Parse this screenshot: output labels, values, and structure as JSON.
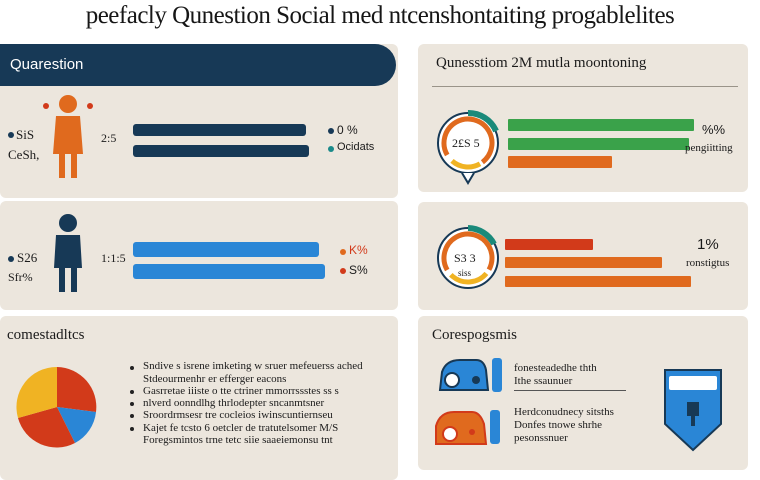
{
  "title": "peefacly Qunestion Social med ntcenshontaiting progablelites",
  "left_panel": {
    "header": "Quarestion",
    "row1": {
      "label_a": "SiS",
      "label_b": "CeSh,",
      "mid_value": "2:5",
      "right_a": "0 %",
      "right_b": "Ocidats"
    },
    "row2": {
      "label_a": "S26",
      "label_b": "Sfr%",
      "mid_value": "1:1:5",
      "right_a": "K%",
      "right_b": "S%"
    }
  },
  "right_panel": {
    "header": "Qunesstiom 2M mutla moontoning",
    "gauge1_value": "2£S 5",
    "gauge1_sub": "",
    "gauge1_right_value": "%%",
    "gauge1_right_label": "pengiitting",
    "gauge2_value": "S3 3",
    "gauge2_sub": "siss",
    "gauge2_right_value": "1%",
    "gauge2_right_label": "ronstigtus"
  },
  "bottom_left": {
    "heading": "comestadltcs",
    "lines": [
      "Sndive s isrene imketing w sruer mefeuerss ached",
      "Stdeourmenhr er efferger eacons",
      "Gasrretae iiiste o tte ctriner mmorrssstes ss s",
      "nlverd oonndlhg thrlodepter sncanmtsner",
      "Sroordrmsesr tre cocleios iwinscuntiernseu",
      "Kajet fe tcsto 6 oetcler de tratutelsomer M/S",
      "Foregsmintos trne tetc siie saaeiemonsu tnt"
    ]
  },
  "bottom_right": {
    "heading": "Corespogsmis",
    "item1_lines": [
      "fonesteadedhe thth",
      "Ithe ssaunuer"
    ],
    "item2_lines": [
      "Herdconudnecy sitsths",
      "Donfes tnowe shrhe",
      "pesonssnuer"
    ]
  },
  "colors": {
    "navy": "#173956",
    "orange": "#e06a1e",
    "green": "#3aa24a",
    "blue": "#2a86d6",
    "red": "#d23a1a",
    "panel": "#ece6dd"
  }
}
